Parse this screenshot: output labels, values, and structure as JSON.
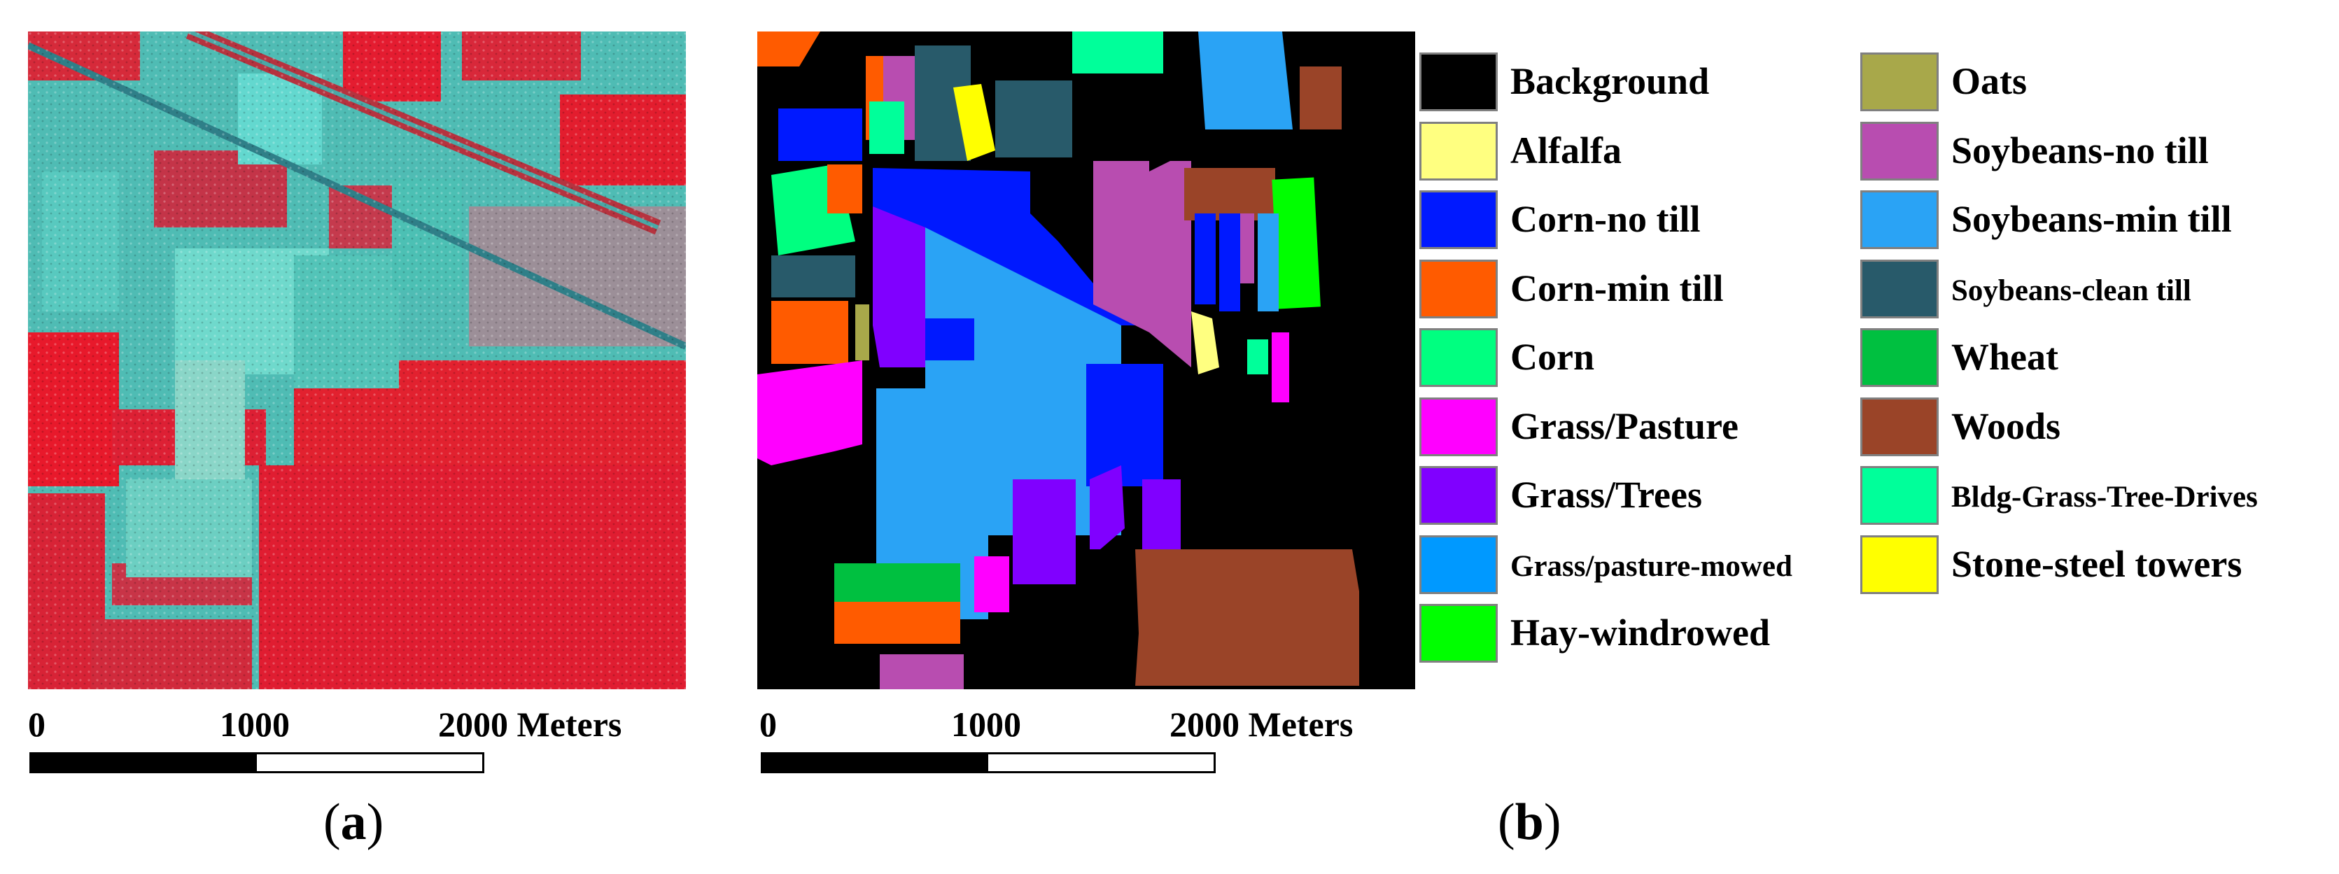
{
  "panel_a": {
    "sublabel": "a",
    "scale": {
      "ticks": [
        "0",
        "1000",
        "2000 Meters"
      ]
    }
  },
  "panel_b": {
    "sublabel": "b",
    "scale": {
      "ticks": [
        "0",
        "1000",
        "2000 Meters"
      ]
    }
  },
  "legend": [
    {
      "label": "Background",
      "color": "#000000"
    },
    {
      "label": "Alfalfa",
      "color": "#ffff80"
    },
    {
      "label": "Corn-no till",
      "color": "#0019ff"
    },
    {
      "label": "Corn-min till",
      "color": "#ff5b00"
    },
    {
      "label": "Corn",
      "color": "#00ff80"
    },
    {
      "label": "Grass/Pasture",
      "color": "#ff00ff"
    },
    {
      "label": "Grass/Trees",
      "color": "#8000ff"
    },
    {
      "label": "Grass/pasture-mowed",
      "color": "#0099ff"
    },
    {
      "label": "Hay-windrowed",
      "color": "#00ff00"
    },
    {
      "label": "Oats",
      "color": "#a8a84a"
    },
    {
      "label": "Soybeans-no till",
      "color": "#b84db0"
    },
    {
      "label": "Soybeans-min till",
      "color": "#2aa3f5"
    },
    {
      "label": "Soybeans-clean till",
      "color": "#285a6a"
    },
    {
      "label": "Wheat",
      "color": "#00c040"
    },
    {
      "label": "Woods",
      "color": "#9a4428"
    },
    {
      "label": "Bldg-Grass-Tree-Drives",
      "color": "#00ff9a"
    },
    {
      "label": "Stone-steel towers",
      "color": "#ffff00"
    }
  ]
}
